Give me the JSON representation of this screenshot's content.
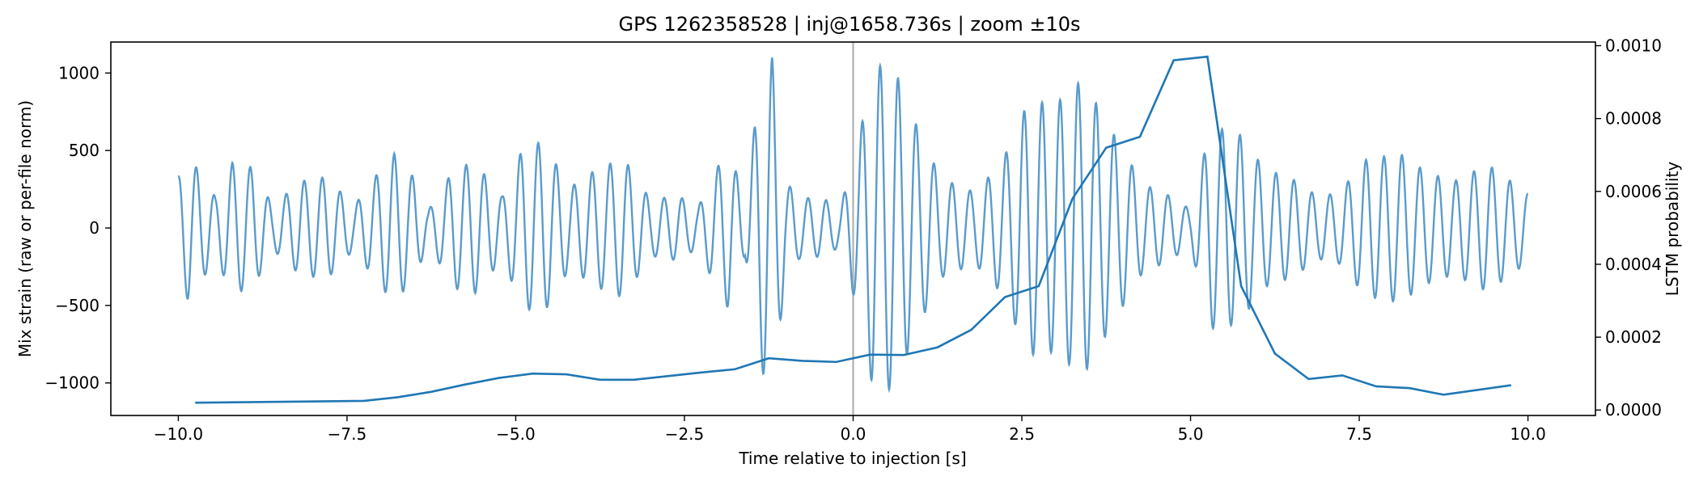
{
  "chart_data": {
    "type": "line",
    "title": "GPS 1262358528 | inj@1658.736s | zoom ±10s",
    "xlabel": "Time relative to injection [s]",
    "ylabel_left": "Mix strain (raw or per-file norm)",
    "ylabel_right": "LSTM probability",
    "xlim": [
      -11.0,
      11.0
    ],
    "ylim_left": [
      -1210,
      1200
    ],
    "ylim_right": [
      -1.5e-05,
      0.00101
    ],
    "x_ticks": [
      -10.0,
      -7.5,
      -5.0,
      -2.5,
      0.0,
      2.5,
      5.0,
      7.5,
      10.0
    ],
    "x_tick_labels": [
      "−10.0",
      "−7.5",
      "−5.0",
      "−2.5",
      "0.0",
      "2.5",
      "5.0",
      "7.5",
      "10.0"
    ],
    "y_left_ticks": [
      -1000,
      -500,
      0,
      500,
      1000
    ],
    "y_left_tick_labels": [
      "−1000",
      "−500",
      "0",
      "500",
      "1000"
    ],
    "y_right_ticks": [
      0.0,
      0.0002,
      0.0004,
      0.0006,
      0.0008,
      0.001
    ],
    "y_right_tick_labels": [
      "0.0000",
      "0.0002",
      "0.0004",
      "0.0006",
      "0.0008",
      "0.0010"
    ],
    "injection_marker_x": 0.0,
    "colors": {
      "strain": "#5a9bcb",
      "probability": "#1f77b4",
      "marker": "#b0b0b0"
    },
    "strain_series": {
      "name": "Mix strain",
      "x_start": -10.0,
      "x_end": 10.0,
      "carrier_hz": 3.75,
      "envelope": [
        [
          -10.0,
          330
        ],
        [
          -9.85,
          470
        ],
        [
          -9.6,
          300
        ],
        [
          -9.45,
          200
        ],
        [
          -9.2,
          420
        ],
        [
          -8.9,
          390
        ],
        [
          -8.6,
          140
        ],
        [
          -8.2,
          300
        ],
        [
          -7.8,
          330
        ],
        [
          -7.4,
          140
        ],
        [
          -7.0,
          380
        ],
        [
          -6.8,
          480
        ],
        [
          -6.5,
          320
        ],
        [
          -6.3,
          110
        ],
        [
          -5.9,
          390
        ],
        [
          -5.6,
          420
        ],
        [
          -5.2,
          200
        ],
        [
          -4.9,
          510
        ],
        [
          -4.6,
          560
        ],
        [
          -4.2,
          260
        ],
        [
          -3.8,
          380
        ],
        [
          -3.4,
          450
        ],
        [
          -3.0,
          180
        ],
        [
          -2.6,
          210
        ],
        [
          -2.3,
          130
        ],
        [
          -2.1,
          320
        ],
        [
          -1.85,
          520
        ],
        [
          -1.6,
          180
        ],
        [
          -1.4,
          860
        ],
        [
          -1.2,
          1100
        ],
        [
          -1.0,
          300
        ],
        [
          -0.8,
          200
        ],
        [
          -0.4,
          180
        ],
        [
          -0.2,
          120
        ],
        [
          0.05,
          500
        ],
        [
          0.3,
          1050
        ],
        [
          0.6,
          1040
        ],
        [
          0.9,
          700
        ],
        [
          1.3,
          320
        ],
        [
          1.8,
          230
        ],
        [
          2.2,
          420
        ],
        [
          2.6,
          820
        ],
        [
          3.0,
          800
        ],
        [
          3.4,
          960
        ],
        [
          3.8,
          650
        ],
        [
          4.3,
          280
        ],
        [
          4.6,
          230
        ],
        [
          5.0,
          120
        ],
        [
          5.3,
          650
        ],
        [
          5.7,
          620
        ],
        [
          6.1,
          380
        ],
        [
          6.5,
          320
        ],
        [
          6.9,
          200
        ],
        [
          7.2,
          230
        ],
        [
          7.6,
          440
        ],
        [
          8.1,
          480
        ],
        [
          8.5,
          360
        ],
        [
          8.9,
          300
        ],
        [
          9.4,
          410
        ],
        [
          9.75,
          300
        ],
        [
          10.0,
          220
        ]
      ]
    },
    "probability_series": {
      "name": "LSTM probability",
      "x": [
        -9.75,
        -7.25,
        -6.75,
        -6.25,
        -5.75,
        -5.25,
        -4.75,
        -4.25,
        -3.75,
        -3.25,
        -2.75,
        -2.25,
        -1.75,
        -1.25,
        -0.75,
        -0.25,
        0.25,
        0.75,
        1.25,
        1.75,
        2.25,
        2.75,
        3.25,
        3.75,
        4.25,
        4.75,
        5.25,
        5.75,
        6.25,
        6.75,
        7.25,
        7.75,
        8.25,
        8.75,
        9.25,
        9.75
      ],
      "y": [
        2e-05,
        2.5e-05,
        3.5e-05,
        5e-05,
        7e-05,
        8.8e-05,
        0.0001,
        9.8e-05,
        8.3e-05,
        8.3e-05,
        9.3e-05,
        0.000103,
        0.000112,
        0.000142,
        0.000135,
        0.000132,
        0.000152,
        0.000151,
        0.000172,
        0.00022,
        0.00031,
        0.00034,
        0.00058,
        0.00072,
        0.00075,
        0.00096,
        0.00097,
        0.00034,
        0.000155,
        8.5e-05,
        9.5e-05,
        6.5e-05,
        6e-05,
        4.2e-05,
        5.5e-05,
        6.8e-05
      ]
    }
  }
}
